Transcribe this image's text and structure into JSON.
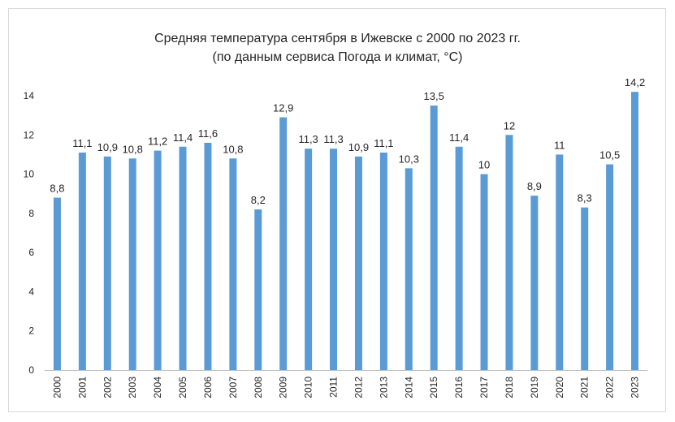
{
  "chart_data": {
    "type": "bar",
    "title": "Средняя температура сентября в Ижевске с 2000 по 2023 гг.",
    "subtitle": "(по данным сервиса Погода и климат, °C)",
    "xlabel": "",
    "ylabel": "",
    "categories": [
      "2000",
      "2001",
      "2002",
      "2003",
      "2004",
      "2005",
      "2006",
      "2007",
      "2008",
      "2009",
      "2010",
      "2011",
      "2012",
      "2013",
      "2014",
      "2015",
      "2016",
      "2017",
      "2018",
      "2019",
      "2020",
      "2021",
      "2022",
      "2023"
    ],
    "values": [
      8.8,
      11.1,
      10.9,
      10.8,
      11.2,
      11.4,
      11.6,
      10.8,
      8.2,
      12.9,
      11.3,
      11.3,
      10.9,
      11.1,
      10.3,
      13.5,
      11.4,
      10,
      12,
      8.9,
      11,
      8.3,
      10.5,
      14.2
    ],
    "data_labels": [
      "8,8",
      "11,1",
      "10,9",
      "10,8",
      "11,2",
      "11,4",
      "11,6",
      "10,8",
      "8,2",
      "12,9",
      "11,3",
      "11,3",
      "10,9",
      "11,1",
      "10,3",
      "13,5",
      "11,4",
      "10",
      "12",
      "8,9",
      "11",
      "8,3",
      "10,5",
      "14,2"
    ],
    "y_ticks": [
      0,
      2,
      4,
      6,
      8,
      10,
      12,
      14
    ],
    "ylim": [
      0,
      14
    ],
    "grid": false,
    "legend": "none",
    "bar_color": "#5b9bd5"
  }
}
